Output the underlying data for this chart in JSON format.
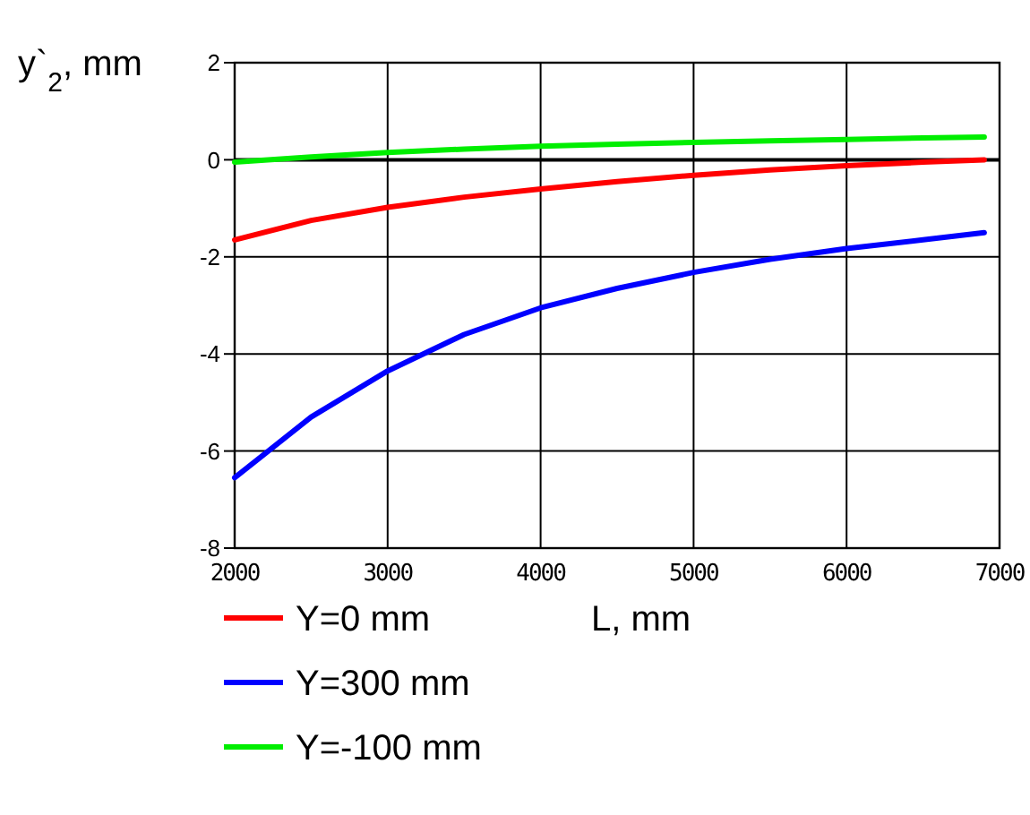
{
  "chart_data": {
    "type": "line",
    "ylabel": "y`$_{2}$, mm",
    "xlabel": "L, mm",
    "xlim": [
      2000,
      7000
    ],
    "xticks": [
      2000,
      3000,
      4000,
      5000,
      6000,
      7000
    ],
    "ylim": [
      -8,
      2
    ],
    "yticks": [
      -8,
      -6,
      -4,
      -2,
      0,
      2
    ],
    "grid": true,
    "legend": "bottom",
    "x": [
      2000,
      2500,
      3000,
      3500,
      4000,
      4500,
      5000,
      5500,
      6000,
      6500,
      6900
    ],
    "series": [
      {
        "name": "Y=0  mm",
        "color": "#ff0000",
        "values": [
          -1.65,
          -1.25,
          -0.98,
          -0.77,
          -0.6,
          -0.45,
          -0.32,
          -0.21,
          -0.12,
          -0.05,
          0.0
        ]
      },
      {
        "name": "Y=300 mm",
        "color": "#0000ff",
        "values": [
          -6.55,
          -5.3,
          -4.35,
          -3.6,
          -3.05,
          -2.65,
          -2.32,
          -2.05,
          -1.83,
          -1.65,
          -1.5
        ]
      },
      {
        "name": "Y=-100 mm",
        "color": "#00ee00",
        "values": [
          -0.05,
          0.06,
          0.15,
          0.22,
          0.28,
          0.32,
          0.36,
          0.39,
          0.42,
          0.45,
          0.47
        ]
      }
    ]
  }
}
